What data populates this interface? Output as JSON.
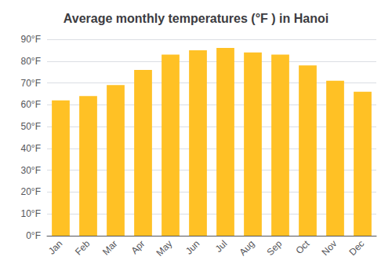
{
  "chart_data": {
    "type": "bar",
    "title": "Average monthly temperatures (°F ) in Hanoi",
    "categories": [
      "Jan",
      "Feb",
      "Mar",
      "Apr",
      "May",
      "Jun",
      "Jul",
      "Aug",
      "Sep",
      "Oct",
      "Nov",
      "Dec"
    ],
    "values": [
      62,
      64,
      69,
      76,
      83,
      85,
      86,
      84,
      83,
      78,
      71,
      66
    ],
    "color": "#FFC125",
    "ylim": [
      0,
      90
    ],
    "yticks": [
      {
        "value": 0,
        "label": "0°F"
      },
      {
        "value": 10,
        "label": "10°F"
      },
      {
        "value": 20,
        "label": "20°F"
      },
      {
        "value": 30,
        "label": "30°F"
      },
      {
        "value": 40,
        "label": "40°F"
      },
      {
        "value": 50,
        "label": "50°F"
      },
      {
        "value": 60,
        "label": "60°F"
      },
      {
        "value": 70,
        "label": "70°F"
      },
      {
        "value": 80,
        "label": "80°F"
      },
      {
        "value": 90,
        "label": "90°F"
      }
    ],
    "grid": true
  }
}
